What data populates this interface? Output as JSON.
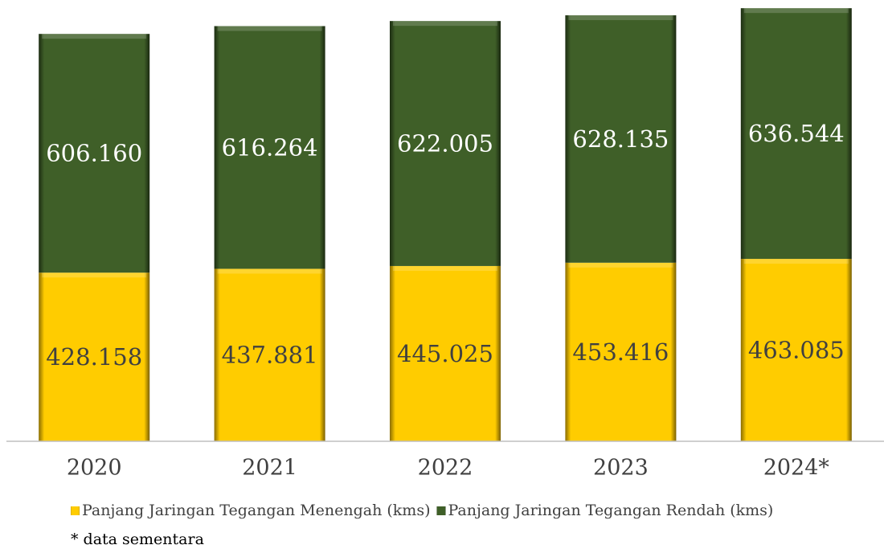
{
  "chart_data": {
    "type": "stacked_bar",
    "categories": [
      "2020",
      "2021",
      "2022",
      "2023",
      "2024*"
    ],
    "series": [
      {
        "name": "Panjang Jaringan Tegangan Menengah (kms)",
        "color": "#ffcc00",
        "label_color": "#404040",
        "values": [
          428158,
          437881,
          445025,
          453416,
          463085
        ],
        "value_labels": [
          "428.158",
          "437.881",
          "445.025",
          "453.416",
          "463.085"
        ]
      },
      {
        "name": "Panjang Jaringan Tegangan Rendah (kms)",
        "color": "#3f5f28",
        "label_color": "#ffffff",
        "values": [
          606160,
          616264,
          622005,
          628135,
          636544
        ],
        "value_labels": [
          "606.160",
          "616.264",
          "622.005",
          "628.135",
          "636.544"
        ]
      }
    ],
    "ylim": [
      0,
      1100000
    ],
    "note": "* data sementara"
  }
}
